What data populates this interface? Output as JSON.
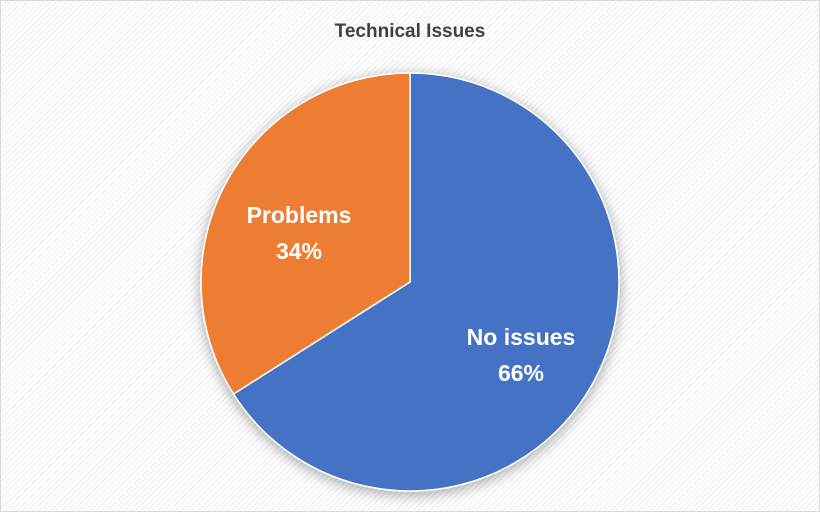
{
  "chart_data": {
    "type": "pie",
    "title": "Technical Issues",
    "slices": [
      {
        "label": "No issues",
        "value": 66,
        "display": "66%",
        "color": "#4472C4"
      },
      {
        "label": "Problems",
        "value": 34,
        "display": "34%",
        "color": "#ED7D31"
      }
    ],
    "legend": "none",
    "data_labels": "inside"
  }
}
